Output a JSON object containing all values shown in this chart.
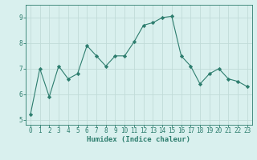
{
  "x": [
    0,
    1,
    2,
    3,
    4,
    5,
    6,
    7,
    8,
    9,
    10,
    11,
    12,
    13,
    14,
    15,
    16,
    17,
    18,
    19,
    20,
    21,
    22,
    23
  ],
  "y": [
    5.2,
    7.0,
    5.9,
    7.1,
    6.6,
    6.8,
    7.9,
    7.5,
    7.1,
    7.5,
    7.5,
    8.05,
    8.7,
    8.8,
    9.0,
    9.05,
    7.5,
    7.1,
    6.4,
    6.8,
    7.0,
    6.6,
    6.5,
    6.3
  ],
  "line_color": "#2d7d6e",
  "marker": "D",
  "marker_size": 2.2,
  "bg_color": "#d9f0ee",
  "grid_color": "#c0dbd8",
  "xlabel": "Humidex (Indice chaleur)",
  "ylim": [
    4.8,
    9.5
  ],
  "xlim": [
    -0.5,
    23.5
  ],
  "yticks": [
    5,
    6,
    7,
    8,
    9
  ],
  "xticks": [
    0,
    1,
    2,
    3,
    4,
    5,
    6,
    7,
    8,
    9,
    10,
    11,
    12,
    13,
    14,
    15,
    16,
    17,
    18,
    19,
    20,
    21,
    22,
    23
  ],
  "tick_color": "#2d7d6e",
  "label_fontsize": 6.5,
  "tick_fontsize": 5.5
}
